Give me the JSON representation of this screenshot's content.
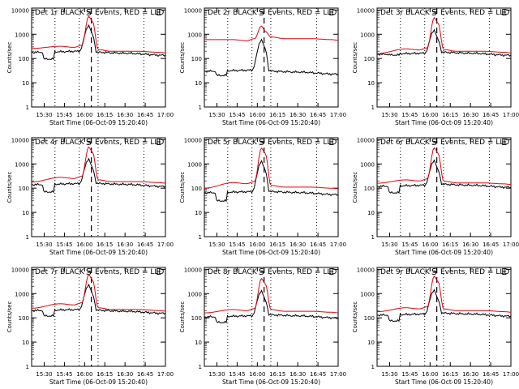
{
  "chart_data": {
    "type": "line",
    "xlabel": "Start Time (06-Oct-09 15:20:40)",
    "ylabel": "Counts/sec",
    "x_ticks": [
      "15:30",
      "15:45",
      "16:00",
      "16:15",
      "16:30",
      "16:45",
      "17:00"
    ],
    "y_ticks": [
      "1",
      "10",
      "100",
      "1000",
      "10000"
    ],
    "x_range": [
      "15:20:40",
      "17:00"
    ],
    "y_range": [
      1,
      12000
    ],
    "y_scale": "log",
    "markers": {
      "S": "16:03",
      "E": "16:55"
    },
    "dashed_line": "16:05",
    "dotted_lines": [
      "15:38",
      "15:56",
      "16:10",
      "16:44"
    ],
    "series_colors": {
      "black": "#000000",
      "red": "#e8000b"
    },
    "panels": [
      {
        "title": "Det 1r BLACK = Events, RED = LLD",
        "red": {
          "base": 260,
          "bump": 320,
          "peak": 5500,
          "tail": 180
        },
        "black": {
          "base": 180,
          "dip": 95,
          "peak": 2300,
          "tail": 150
        }
      },
      {
        "title": "Det 2r BLACK = Events, RED = LLD",
        "red": {
          "base": 600,
          "bump": 600,
          "peak": 2200,
          "tail": 600
        },
        "black": {
          "base": 30,
          "dip": 20,
          "peak": 600,
          "tail": 25
        }
      },
      {
        "title": "Det 3r BLACK = Events, RED = LLD",
        "red": {
          "base": 160,
          "bump": 250,
          "peak": 4800,
          "tail": 180
        },
        "black": {
          "base": 150,
          "dip": 140,
          "peak": 1500,
          "tail": 150
        }
      },
      {
        "title": "Det 4r BLACK = Events, RED = LLD",
        "red": {
          "base": 180,
          "bump": 280,
          "peak": 5000,
          "tail": 170
        },
        "black": {
          "base": 140,
          "dip": 70,
          "peak": 1600,
          "tail": 130
        }
      },
      {
        "title": "Det 5r BLACK = Events, RED = LLD",
        "red": {
          "base": 100,
          "bump": 170,
          "peak": 4500,
          "tail": 100
        },
        "black": {
          "base": 65,
          "dip": 30,
          "peak": 1300,
          "tail": 60
        }
      },
      {
        "title": "Det 6r BLACK = Events, RED = LLD",
        "red": {
          "base": 160,
          "bump": 220,
          "peak": 4600,
          "tail": 150
        },
        "black": {
          "base": 120,
          "dip": 65,
          "peak": 1400,
          "tail": 120
        }
      },
      {
        "title": "Det 7r BLACK = Events, RED = LLD",
        "red": {
          "base": 250,
          "bump": 380,
          "peak": 6000,
          "tail": 200
        },
        "black": {
          "base": 200,
          "dip": 120,
          "peak": 2300,
          "tail": 170
        }
      },
      {
        "title": "Det 8r BLACK = Events, RED = LLD",
        "red": {
          "base": 160,
          "bump": 220,
          "peak": 4200,
          "tail": 170
        },
        "black": {
          "base": 110,
          "dip": 65,
          "peak": 1300,
          "tail": 110
        }
      },
      {
        "title": "Det 9r BLACK = Events, RED = LLD",
        "red": {
          "base": 180,
          "bump": 260,
          "peak": 5200,
          "tail": 180
        },
        "black": {
          "base": 130,
          "dip": 75,
          "peak": 1400,
          "tail": 130
        }
      }
    ]
  }
}
